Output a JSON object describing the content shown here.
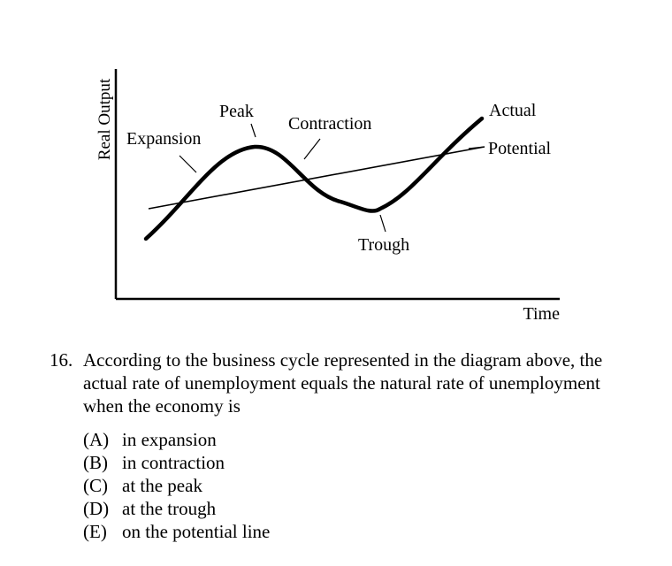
{
  "diagram": {
    "y_axis_label": "Real Output",
    "x_axis_label": "Time",
    "labels": {
      "expansion": "Expansion",
      "peak": "Peak",
      "contraction": "Contraction",
      "trough": "Trough",
      "actual": "Actual",
      "potential": "Potential"
    }
  },
  "question": {
    "number": "16.",
    "text": "According to the business cycle represented in the diagram above, the actual rate of unemployment equals the natural rate of unemployment when the economy is",
    "choices": [
      {
        "letter": "(A)",
        "text": "in expansion"
      },
      {
        "letter": "(B)",
        "text": "in contraction"
      },
      {
        "letter": "(C)",
        "text": "at the peak"
      },
      {
        "letter": "(D)",
        "text": "at the trough"
      },
      {
        "letter": "(E)",
        "text": "on the potential line"
      }
    ]
  }
}
